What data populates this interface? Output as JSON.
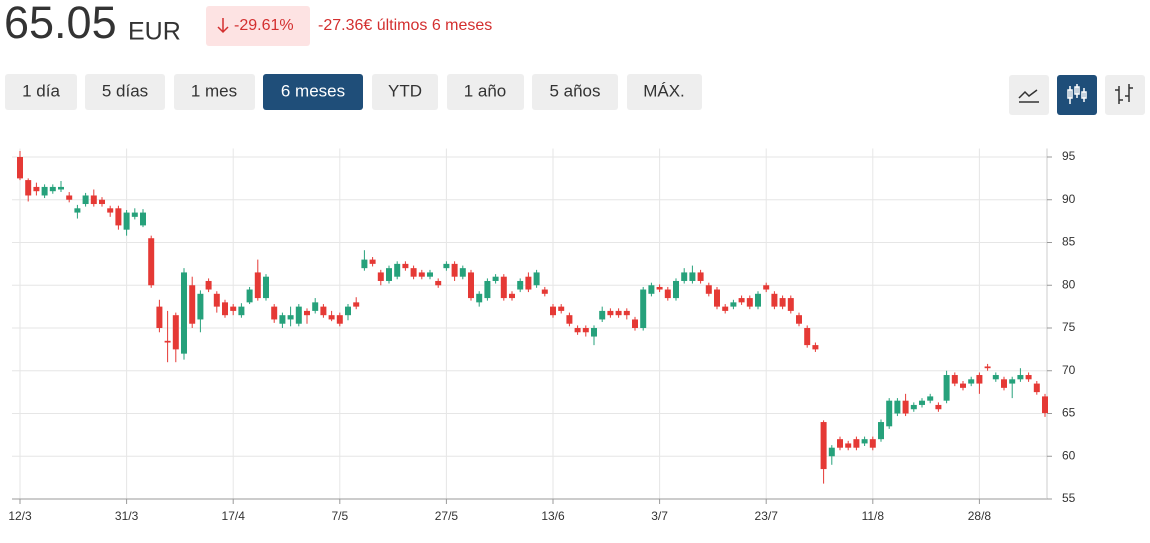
{
  "header": {
    "price": "65.05",
    "currency": "EUR",
    "change_percent": "-29.61%",
    "change_text": "-27.36€ últimos 6 meses"
  },
  "range_buttons": [
    "1 día",
    "5 días",
    "1 mes",
    "6 meses",
    "YTD",
    "1 año",
    "5 años",
    "MÁX."
  ],
  "active_range_button": 3,
  "chart_data": {
    "type": "candlestick",
    "categories": [
      "12/3",
      null,
      null,
      null,
      null,
      null,
      null,
      null,
      null,
      null,
      null,
      null,
      null,
      "31/3",
      null,
      null,
      null,
      null,
      null,
      null,
      null,
      null,
      null,
      null,
      null,
      null,
      "17/4",
      null,
      null,
      null,
      null,
      null,
      null,
      null,
      null,
      null,
      null,
      null,
      null,
      "7/5",
      null,
      null,
      null,
      null,
      null,
      null,
      null,
      null,
      null,
      null,
      null,
      null,
      "27/5",
      null,
      null,
      null,
      null,
      null,
      null,
      null,
      null,
      null,
      null,
      null,
      null,
      "13/6",
      null,
      null,
      null,
      null,
      null,
      null,
      null,
      null,
      null,
      null,
      null,
      null,
      "3/7",
      null,
      null,
      null,
      null,
      null,
      null,
      null,
      null,
      null,
      null,
      null,
      null,
      "23/7",
      null,
      null,
      null,
      null,
      null,
      null,
      null,
      null,
      null,
      null,
      null,
      null,
      "11/8",
      null,
      null,
      null,
      null,
      null,
      null,
      null,
      null,
      null,
      null,
      null,
      null,
      "28/8",
      null,
      null,
      null,
      null,
      null,
      null,
      null,
      null
    ],
    "open": [
      95,
      92.3,
      91.5,
      90.5,
      91,
      91.2,
      90.5,
      88.5,
      89.5,
      90.5,
      90,
      89,
      89,
      86.5,
      88,
      87,
      85.5,
      77.5,
      73.5,
      76.5,
      72,
      80,
      76,
      80.5,
      79,
      78,
      77.5,
      76.5,
      78,
      81.5,
      78.5,
      77.5,
      75.5,
      76,
      75.5,
      77,
      77,
      77.5,
      76.5,
      76.5,
      76.5,
      78,
      82,
      83,
      81.5,
      80.5,
      81,
      82.5,
      82,
      81.5,
      81,
      80.5,
      82,
      82.5,
      81,
      81.5,
      78,
      78.5,
      80.5,
      81,
      79,
      79.5,
      81,
      80,
      79.5,
      77.5,
      77.5,
      76.5,
      75,
      75,
      74,
      76,
      77,
      77,
      77,
      76,
      75,
      79,
      79.8,
      79.5,
      78.5,
      80.5,
      80.5,
      81.5,
      80,
      79.5,
      77.5,
      77.5,
      78.5,
      78.5,
      77.5,
      80,
      79,
      78.5,
      78.5,
      76.5,
      75,
      73,
      64,
      60,
      62,
      61.5,
      62,
      61.5,
      62,
      62,
      63.5,
      65,
      66.5,
      65.5,
      66,
      66.5,
      66,
      66.5,
      69.5,
      68.5,
      68.5,
      69.5,
      70.5,
      69,
      69,
      68.5,
      69,
      69.5,
      68.5,
      67
    ],
    "high": [
      95.7,
      92.5,
      92,
      91.8,
      91.8,
      92.2,
      90.9,
      89.4,
      90.8,
      91.2,
      90.3,
      89.3,
      89.3,
      88.8,
      89,
      88.9,
      85.8,
      78.3,
      77,
      76.8,
      82,
      81,
      79.4,
      80.8,
      79.3,
      78.3,
      77.8,
      77.9,
      79.8,
      83,
      81.3,
      77.8,
      76.8,
      77.5,
      77.8,
      77.3,
      78.5,
      77.8,
      77,
      76.8,
      77.8,
      78.6,
      84.1,
      83.3,
      81.8,
      82.3,
      82.8,
      82.8,
      82.3,
      81.8,
      81.8,
      80.8,
      82.8,
      82.8,
      82.3,
      81.8,
      79.3,
      80.8,
      81.3,
      81.3,
      79.3,
      80.8,
      81.5,
      81.8,
      79.8,
      77.8,
      77.8,
      76.8,
      75.3,
      75.3,
      75.3,
      77.5,
      77.3,
      77.3,
      77.3,
      76.3,
      79.8,
      80.3,
      80.1,
      79.8,
      80.8,
      82,
      82.3,
      81.8,
      80.3,
      79.8,
      77.8,
      78.3,
      78.8,
      78.8,
      79.3,
      80.3,
      79.3,
      78.8,
      78.8,
      76.8,
      75.3,
      73.3,
      64.2,
      61.3,
      62.3,
      61.8,
      62.3,
      62.3,
      62.3,
      64.3,
      66.8,
      66.8,
      67.3,
      66.3,
      66.8,
      67.3,
      66.3,
      70,
      69.8,
      68.8,
      69.3,
      69.8,
      70.8,
      69.8,
      69.3,
      69.3,
      70.3,
      69.8,
      68.8,
      67.3
    ],
    "low": [
      92.3,
      89.8,
      90.5,
      90.2,
      90.7,
      90.9,
      89.7,
      87.8,
      89.2,
      89.2,
      89.2,
      88,
      86.5,
      85.8,
      87.7,
      86.8,
      79.7,
      74.5,
      71,
      71,
      71.3,
      75,
      74.5,
      79.2,
      76.8,
      76.2,
      76.5,
      76.2,
      77.8,
      78.2,
      78.2,
      75.6,
      75,
      75.2,
      75.2,
      75.5,
      76.7,
      76.2,
      75.8,
      75.2,
      75.9,
      77.2,
      81.7,
      82.2,
      80,
      80.2,
      80.7,
      81.7,
      80.7,
      80.7,
      80.7,
      79.7,
      81.7,
      80.5,
      80.7,
      78.2,
      77.5,
      78.2,
      80.2,
      78.2,
      78.2,
      79.2,
      79.2,
      79.7,
      78.7,
      76.2,
      76.7,
      75.2,
      74.2,
      74,
      73,
      75.7,
      76.2,
      76.2,
      76,
      74.7,
      74.7,
      78.7,
      79.2,
      78.2,
      78.2,
      80.2,
      80.2,
      80.2,
      78.7,
      77.2,
      76.7,
      77.2,
      77.7,
      77.2,
      77.2,
      79.2,
      77.2,
      77.2,
      76.7,
      75.2,
      72.7,
      72.2,
      56.8,
      59,
      60.7,
      60.7,
      60.7,
      61.2,
      60.7,
      61.7,
      63.2,
      64.7,
      64.7,
      65.2,
      65.7,
      66.2,
      65.2,
      66.2,
      68.2,
      67.7,
      68.2,
      67.3,
      70,
      68.7,
      67.7,
      66.8,
      68.7,
      68.7,
      67.2,
      64.6
    ],
    "close": [
      92.5,
      90.5,
      91,
      91.5,
      91.5,
      91.5,
      90,
      89,
      90.5,
      89.5,
      89.5,
      88.5,
      87,
      88.5,
      88.5,
      88.5,
      80,
      75,
      73.3,
      72.5,
      81.5,
      75.5,
      79,
      79.5,
      77.5,
      76.5,
      77,
      77.5,
      79.5,
      78.5,
      81,
      76,
      76.5,
      76.5,
      77.5,
      76.5,
      78,
      76.5,
      76,
      75.5,
      77.5,
      77.5,
      83,
      82.5,
      80.5,
      82,
      82.5,
      82,
      81,
      81,
      81.5,
      80,
      82.5,
      81,
      82,
      78.5,
      79,
      80.5,
      81,
      78.5,
      78.5,
      80.5,
      79.5,
      81.5,
      79,
      76.5,
      77,
      75.5,
      74.5,
      74.5,
      75,
      77,
      76.5,
      76.5,
      76.5,
      75,
      79.5,
      80,
      79.5,
      78.5,
      80.5,
      81.5,
      81.5,
      80.5,
      79,
      77.5,
      77,
      78,
      78,
      77.5,
      79,
      79.5,
      77.5,
      77.5,
      77,
      75.5,
      73,
      72.5,
      58.5,
      61,
      61,
      61,
      61,
      62,
      61,
      64,
      66.5,
      66.5,
      65,
      66,
      66.5,
      67,
      65.5,
      69.5,
      68.5,
      68,
      69,
      68.5,
      70.3,
      69.5,
      68,
      69,
      69.5,
      69,
      67.5,
      65.05
    ],
    "up_color": "#26a17b",
    "down_color": "#e53935",
    "ylim": [
      55,
      96
    ],
    "yticks": [
      55,
      60,
      65,
      70,
      75,
      80,
      85,
      90,
      95
    ],
    "grid": true
  }
}
